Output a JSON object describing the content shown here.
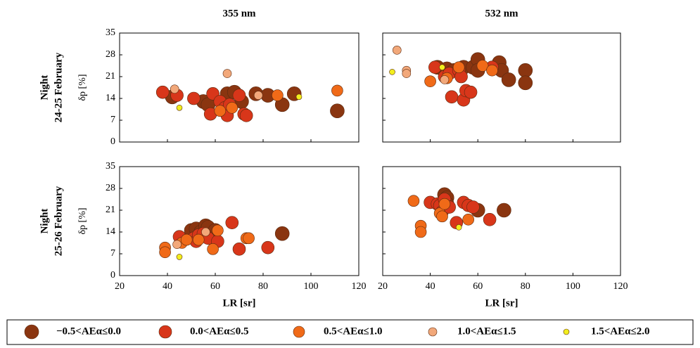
{
  "legend": [
    {
      "name": "−0.5<AEα≤0.0",
      "color": "#8a3510"
    },
    {
      "name": "0.0<AEα≤0.5",
      "color": "#d8361a"
    },
    {
      "name": "0.5<AEα≤1.0",
      "color": "#f06a18"
    },
    {
      "name": "1.0<AEα≤1.5",
      "color": "#f2a87a"
    },
    {
      "name": "1.5<AEα≤2.0",
      "color": "#f2ee1e"
    }
  ],
  "chart_data": [
    {
      "type": "scatter",
      "title": "355 nm",
      "row_label": [
        "Night",
        "24-25 February"
      ],
      "ylabel": "δp [%]",
      "xlim": [
        20,
        120
      ],
      "xticks": [
        20,
        40,
        60,
        80,
        100,
        120
      ],
      "ylim": [
        0,
        35
      ],
      "yticks": [
        0,
        7,
        14,
        21,
        28,
        35
      ],
      "show_ytick_labels": true,
      "show_xtick_labels": false,
      "series": [
        {
          "x": [
            42,
            55,
            57,
            65,
            68,
            71,
            77,
            82,
            88,
            93,
            111
          ],
          "y": [
            14.5,
            13,
            12,
            15.5,
            16,
            13,
            15.5,
            15,
            12,
            15.5,
            10
          ]
        },
        {
          "x": [
            38,
            44,
            51,
            59,
            58,
            62,
            64,
            65,
            66,
            70,
            72,
            73
          ],
          "y": [
            16,
            15,
            14,
            15.5,
            9,
            13,
            11,
            8.5,
            12,
            15,
            9,
            8.5
          ]
        },
        {
          "x": [
            62,
            67,
            86,
            111
          ],
          "y": [
            10,
            11,
            15,
            16.5
          ]
        },
        {
          "x": [
            43,
            65,
            78
          ],
          "y": [
            17,
            22,
            15
          ]
        },
        {
          "x": [
            45,
            95
          ],
          "y": [
            11,
            14.5
          ]
        }
      ]
    },
    {
      "type": "scatter",
      "title": "532 nm",
      "xlim": [
        20,
        120
      ],
      "xticks": [
        20,
        40,
        60,
        80,
        100,
        120
      ],
      "ylim": [
        0,
        35
      ],
      "yticks": [
        0,
        7,
        14,
        21,
        28,
        35
      ],
      "show_ytick_labels": false,
      "show_xtick_labels": false,
      "series": [
        {
          "x": [
            43,
            47,
            50,
            54,
            58,
            60,
            60,
            69,
            70,
            73,
            80,
            80
          ],
          "y": [
            24,
            23.5,
            23,
            24,
            24,
            26.5,
            23,
            25.5,
            23,
            20,
            23,
            19
          ]
        },
        {
          "x": [
            42,
            46,
            48,
            49,
            52,
            53,
            54,
            55,
            57,
            66
          ],
          "y": [
            24,
            21,
            22,
            14.5,
            23,
            21,
            13.5,
            16.5,
            16,
            24
          ]
        },
        {
          "x": [
            40,
            47,
            52,
            62,
            66
          ],
          "y": [
            19.5,
            20.5,
            24,
            24.5,
            23
          ]
        },
        {
          "x": [
            26,
            30,
            30,
            46
          ],
          "y": [
            29.5,
            23,
            22,
            20
          ]
        },
        {
          "x": [
            24,
            45
          ],
          "y": [
            22.5,
            24
          ]
        }
      ]
    },
    {
      "type": "scatter",
      "row_label": [
        "Night",
        "25-26 February"
      ],
      "ylabel": "δp [%]",
      "xlabel": "LR [sr]",
      "xlim": [
        20,
        120
      ],
      "xticks": [
        20,
        40,
        60,
        80,
        100,
        120
      ],
      "ylim": [
        0,
        35
      ],
      "yticks": [
        0,
        7,
        14,
        21,
        28,
        35
      ],
      "show_ytick_labels": true,
      "show_xtick_labels": true,
      "series": [
        {
          "x": [
            50,
            52,
            54,
            56,
            57,
            60,
            88
          ],
          "y": [
            14.5,
            15,
            14,
            16,
            15.5,
            14.5,
            13.5
          ]
        },
        {
          "x": [
            45,
            51,
            52,
            53,
            55,
            57,
            61,
            67,
            70,
            82
          ],
          "y": [
            12.5,
            12,
            11,
            13,
            13.5,
            12,
            11,
            17,
            8.5,
            9
          ]
        },
        {
          "x": [
            39,
            39,
            46,
            48,
            53,
            59,
            61,
            73,
            74
          ],
          "y": [
            9,
            7.5,
            10.5,
            11.5,
            11.5,
            8.5,
            14.5,
            12,
            12
          ]
        },
        {
          "x": [
            44,
            56
          ],
          "y": [
            10,
            14
          ]
        },
        {
          "x": [
            45
          ],
          "y": [
            6
          ]
        }
      ]
    },
    {
      "type": "scatter",
      "xlabel": "LR [sr]",
      "xlim": [
        20,
        120
      ],
      "xticks": [
        20,
        40,
        60,
        80,
        100,
        120
      ],
      "ylim": [
        0,
        35
      ],
      "yticks": [
        0,
        7,
        14,
        21,
        28,
        35
      ],
      "show_ytick_labels": false,
      "show_xtick_labels": true,
      "series": [
        {
          "x": [
            46,
            47,
            47,
            60,
            71
          ],
          "y": [
            26,
            25,
            23,
            21,
            21
          ]
        },
        {
          "x": [
            40,
            43,
            44,
            45,
            46,
            48,
            51,
            54,
            56,
            58,
            65
          ],
          "y": [
            23.5,
            23,
            22.5,
            20.5,
            24.5,
            22,
            17,
            23.5,
            22.5,
            22,
            18
          ]
        },
        {
          "x": [
            33,
            36,
            36,
            44,
            45,
            46,
            56
          ],
          "y": [
            24,
            16,
            14,
            20,
            19,
            23,
            18
          ]
        },
        {
          "x": [],
          "y": []
        },
        {
          "x": [
            52
          ],
          "y": [
            15.5
          ]
        }
      ]
    }
  ]
}
